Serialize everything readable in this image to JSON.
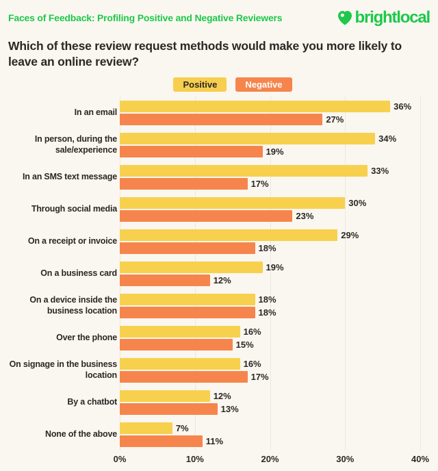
{
  "header": {
    "tagline": "Faces of Feedback: Profiling Positive and Negative Reviewers",
    "brand": "brightlocal"
  },
  "title": "Which of these review request methods would make you more likely to leave an online review?",
  "legend": {
    "positive_label": "Positive",
    "negative_label": "Negative"
  },
  "colors": {
    "background": "#FAF7F0",
    "brand_green": "#1EC84B",
    "positive_yellow": "#F7D04E",
    "negative_orange": "#F6854D",
    "text_dark": "#2B2825",
    "gridline": "#ECE8DE"
  },
  "chart_data": {
    "type": "bar",
    "orientation": "horizontal",
    "title": "Which of these review request methods would make you more likely to leave an online review?",
    "categories": [
      "In an email",
      "In person, during the sale/experience",
      "In an SMS text message",
      "Through social media",
      "On a receipt or invoice",
      "On a business card",
      "On a device inside the business location",
      "Over the phone",
      "On signage in the business location",
      "By a chatbot",
      "None of the above"
    ],
    "series": [
      {
        "name": "Positive",
        "color": "#F7D04E",
        "values": [
          36,
          34,
          33,
          30,
          29,
          19,
          18,
          16,
          16,
          12,
          7
        ]
      },
      {
        "name": "Negative",
        "color": "#F6854D",
        "values": [
          27,
          19,
          17,
          23,
          18,
          12,
          18,
          15,
          17,
          13,
          11
        ]
      }
    ],
    "value_suffix": "%",
    "xlim": [
      0,
      40
    ],
    "tick_values": [
      0,
      10,
      20,
      30,
      40
    ],
    "tick_labels": [
      "0%",
      "10%",
      "20%",
      "30%",
      "40%"
    ],
    "grid": true,
    "legend_position": "top-center",
    "value_labels": "end-of-bar"
  }
}
